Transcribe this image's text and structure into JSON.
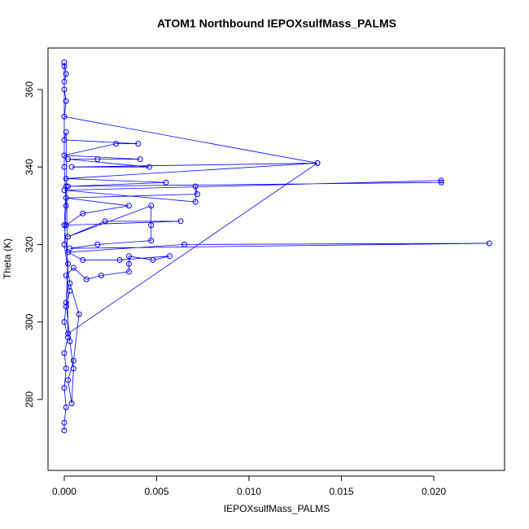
{
  "chart_data": {
    "type": "line",
    "marker": "open-circle",
    "title": "ATOM1 Northbound IEPOXsulfMass_PALMS",
    "x_label": "IEPOXsulfMass_PALMS",
    "y_label": "Theta (K)",
    "color": "#0000ff",
    "xlim": [
      -0.00088,
      0.02383
    ],
    "ylim": [
      261.7,
      370.7
    ],
    "xticks": [
      {
        "value": 0,
        "label": "0.000"
      },
      {
        "value": 0.005,
        "label": "0.005"
      },
      {
        "value": 0.01,
        "label": "0.010"
      },
      {
        "value": 0.015,
        "label": "0.015"
      },
      {
        "value": 0.02,
        "label": "0.020"
      }
    ],
    "yticks": [
      280,
      300,
      320,
      340,
      360
    ],
    "x": [
      0,
      0,
      0.0001,
      0,
      0.0001,
      0,
      0.0002,
      0,
      0.0001,
      0.0003,
      0.0001,
      0.0005,
      0.0012,
      0.002,
      0.0035,
      0.0035,
      0.0035,
      0.0048,
      0.0057,
      0.003,
      0.001,
      0.0002,
      0.0065,
      0.023,
      0.0003,
      0.0018,
      0.0047,
      0.0047,
      0.0047,
      0.0002,
      0.0022,
      0.0063,
      0.0001,
      0.001,
      0.0035,
      0.0001,
      0.0072,
      0.0071,
      0.0071,
      0,
      0.0204,
      0.0204,
      0.0002,
      0.0055,
      0.0001,
      0.0137,
      0.0004,
      0.0046,
      0.0002,
      0.0018,
      0.0041,
      0,
      0.0028,
      0.004,
      0,
      0.0001,
      0.0002,
      0.0137,
      0,
      0.0001,
      0,
      0,
      0.0001,
      0,
      0,
      0,
      0.0001,
      0,
      0.0003,
      0.0008,
      0.0005,
      0.0002,
      0.0004,
      0.0005,
      0.0003,
      0.0001,
      0.0002,
      0,
      0.0001
    ],
    "values": [
      272,
      274,
      278,
      283,
      288,
      292,
      296,
      300,
      304,
      308,
      312,
      314,
      311,
      312,
      313,
      315,
      317,
      316,
      317,
      316,
      316,
      318,
      320,
      320.3,
      319,
      320,
      321,
      325,
      330,
      322,
      326,
      326,
      325,
      328,
      330,
      332,
      333,
      335,
      331,
      334,
      336.5,
      336,
      335,
      336,
      337,
      341,
      340,
      340,
      342,
      342,
      342,
      343,
      346,
      346,
      347,
      349,
      297,
      341,
      353,
      357,
      360,
      362,
      364,
      367,
      366,
      340,
      330,
      320,
      310,
      302,
      290,
      285,
      279,
      288,
      295,
      305,
      315,
      325,
      335
    ]
  }
}
